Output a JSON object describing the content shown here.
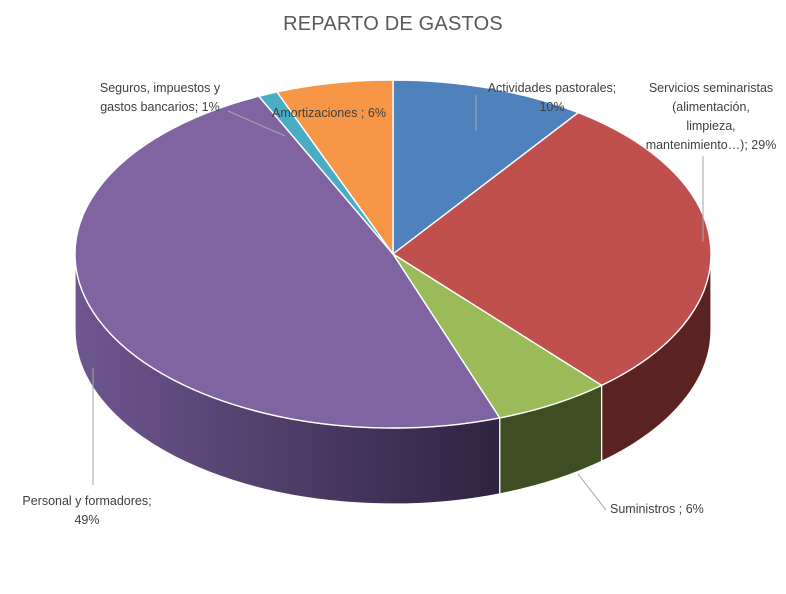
{
  "chart_data": {
    "type": "pie",
    "title": "REPARTO DE GASTOS",
    "slices": [
      {
        "name": "Actividades pastorales",
        "value": 10,
        "label_lines": [
          "Actividades pastorales;",
          "10%"
        ],
        "color": "#4F81BD",
        "side_color": "#2C4A6E"
      },
      {
        "name": "Servicios seminaristas (alimentación, limpieza, mantenimiento…)",
        "value": 29,
        "label_lines": [
          "Servicios seminaristas",
          "(alimentación,",
          "limpieza,",
          "mantenimiento…); 29%"
        ],
        "color": "#C0504D",
        "side_color": "#5A2220"
      },
      {
        "name": "Suministros",
        "value": 6,
        "label_lines": [
          "Suministros ; 6%"
        ],
        "color": "#9BBB59",
        "side_color": "#3E4D22"
      },
      {
        "name": "Personal y formadores",
        "value": 49,
        "label_lines": [
          "Personal y formadores;",
          "49%"
        ],
        "color": "#8064A2",
        "side_color": "#5A4578"
      },
      {
        "name": "Seguros, impuestos y gastos bancarios",
        "value": 1,
        "label_lines": [
          "Seguros, impuestos y",
          "gastos bancarios; 1%"
        ],
        "color": "#4BACC6",
        "side_color": "#2A6878"
      },
      {
        "name": "Amortizaciones",
        "value": 6,
        "label_lines": [
          "Amortizaciones ; 6%"
        ],
        "color": "#F79646",
        "side_color": "#A05A1E"
      }
    ],
    "legend": "none",
    "start_angle_deg": 0,
    "direction": "clockwise"
  }
}
